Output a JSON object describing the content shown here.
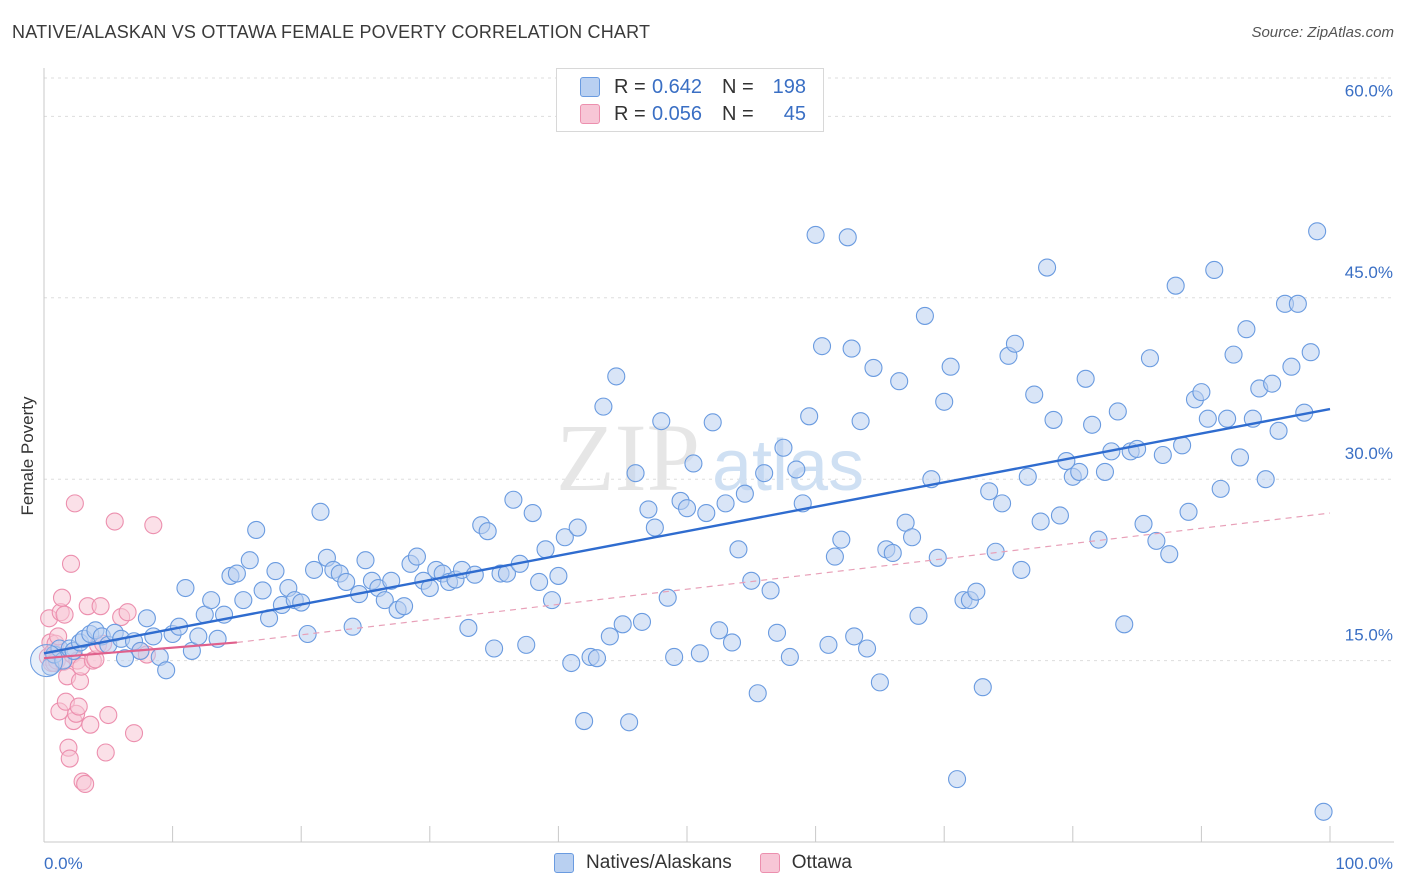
{
  "chart_data": {
    "type": "scatter",
    "title": "NATIVE/ALASKAN VS OTTAWA FEMALE POVERTY CORRELATION CHART",
    "source": "Source: ZipAtlas.com",
    "ylabel": "Female Poverty",
    "xlim": [
      0,
      100
    ],
    "ylim": [
      0,
      64
    ],
    "y_ticks": [
      {
        "value": 15,
        "label": "15.0%"
      },
      {
        "value": 30,
        "label": "30.0%"
      },
      {
        "value": 45,
        "label": "45.0%"
      },
      {
        "value": 60,
        "label": "60.0%"
      }
    ],
    "x_tick_labels": {
      "min": "0.0%",
      "max": "100.0%"
    },
    "watermark": {
      "zip": "ZIP",
      "atlas": "atlas"
    },
    "legend_stats": [
      {
        "r_label": "R =",
        "r": "0.642",
        "n_label": "N =",
        "n": "198"
      },
      {
        "r_label": "R =",
        "r": "0.056",
        "n_label": "N =",
        "n": "45"
      }
    ],
    "series": [
      {
        "name": "Natives/Alaskans",
        "color": "#6a9be0",
        "fill": "#b9d0f1",
        "trend": {
          "x0": 0,
          "y0": 15.6,
          "x1": 100,
          "y1": 35.8,
          "color": "#2f6ccf"
        },
        "points": [
          [
            0.5,
            14.5
          ],
          [
            0.8,
            15.5
          ],
          [
            1.2,
            16
          ],
          [
            1.5,
            15
          ],
          [
            2,
            16
          ],
          [
            2.3,
            15.8
          ],
          [
            2.8,
            16.5
          ],
          [
            3.1,
            16.8
          ],
          [
            3.6,
            17.2
          ],
          [
            4,
            17.5
          ],
          [
            4.5,
            17
          ],
          [
            5,
            16.3
          ],
          [
            5.5,
            17.3
          ],
          [
            6,
            16.8
          ],
          [
            6.3,
            15.2
          ],
          [
            7,
            16.6
          ],
          [
            7.5,
            15.8
          ],
          [
            8,
            18.5
          ],
          [
            8.5,
            17
          ],
          [
            9,
            15.3
          ],
          [
            9.5,
            14.2
          ],
          [
            10,
            17.2
          ],
          [
            10.5,
            17.8
          ],
          [
            11,
            21
          ],
          [
            11.5,
            15.8
          ],
          [
            12,
            17
          ],
          [
            12.5,
            18.8
          ],
          [
            13,
            20
          ],
          [
            13.5,
            16.8
          ],
          [
            14,
            18.8
          ],
          [
            14.5,
            22
          ],
          [
            15,
            22.2
          ],
          [
            15.5,
            20
          ],
          [
            16,
            23.3
          ],
          [
            16.5,
            25.8
          ],
          [
            17,
            20.8
          ],
          [
            17.5,
            18.5
          ],
          [
            18,
            22.4
          ],
          [
            18.5,
            19.6
          ],
          [
            19,
            21
          ],
          [
            19.5,
            20
          ],
          [
            20,
            19.8
          ],
          [
            20.5,
            17.2
          ],
          [
            21,
            22.5
          ],
          [
            21.5,
            27.3
          ],
          [
            22,
            23.5
          ],
          [
            22.5,
            22.5
          ],
          [
            23,
            22.2
          ],
          [
            23.5,
            21.5
          ],
          [
            24,
            17.8
          ],
          [
            24.5,
            20.5
          ],
          [
            25,
            23.3
          ],
          [
            25.5,
            21.6
          ],
          [
            26,
            21
          ],
          [
            26.5,
            20
          ],
          [
            27,
            21.6
          ],
          [
            27.5,
            19.2
          ],
          [
            28,
            19.5
          ],
          [
            28.5,
            23
          ],
          [
            29,
            23.6
          ],
          [
            29.5,
            21.6
          ],
          [
            30,
            21
          ],
          [
            30.5,
            22.5
          ],
          [
            31,
            22.2
          ],
          [
            31.5,
            21.5
          ],
          [
            32,
            21.7
          ],
          [
            32.5,
            22.5
          ],
          [
            33,
            17.7
          ],
          [
            33.5,
            22.1
          ],
          [
            34,
            26.2
          ],
          [
            34.5,
            25.7
          ],
          [
            35,
            16
          ],
          [
            35.5,
            22.2
          ],
          [
            36,
            22.2
          ],
          [
            36.5,
            28.3
          ],
          [
            37,
            23
          ],
          [
            37.5,
            16.3
          ],
          [
            38,
            27.2
          ],
          [
            38.5,
            21.5
          ],
          [
            39,
            24.2
          ],
          [
            39.5,
            20
          ],
          [
            40,
            22
          ],
          [
            40.5,
            25.2
          ],
          [
            41,
            14.8
          ],
          [
            41.5,
            26
          ],
          [
            42,
            10
          ],
          [
            42.5,
            15.3
          ],
          [
            43,
            15.2
          ],
          [
            43.5,
            36
          ],
          [
            44,
            17
          ],
          [
            44.5,
            38.5
          ],
          [
            45,
            18
          ],
          [
            45.5,
            9.9
          ],
          [
            46,
            30.5
          ],
          [
            46.5,
            18.2
          ],
          [
            47,
            27.5
          ],
          [
            47.5,
            26
          ],
          [
            48,
            34.8
          ],
          [
            48.5,
            20.2
          ],
          [
            49,
            15.3
          ],
          [
            49.5,
            28.2
          ],
          [
            50,
            27.6
          ],
          [
            50.5,
            31.3
          ],
          [
            51,
            15.6
          ],
          [
            51.5,
            27.2
          ],
          [
            52,
            34.7
          ],
          [
            52.5,
            17.5
          ],
          [
            53,
            28
          ],
          [
            53.5,
            16.5
          ],
          [
            54,
            24.2
          ],
          [
            54.5,
            28.8
          ],
          [
            55,
            21.6
          ],
          [
            55.5,
            12.3
          ],
          [
            56,
            30.5
          ],
          [
            56.5,
            20.8
          ],
          [
            57,
            17.3
          ],
          [
            57.5,
            32.6
          ],
          [
            58,
            15.3
          ],
          [
            58.5,
            30.8
          ],
          [
            59,
            28
          ],
          [
            59.5,
            35.2
          ],
          [
            60,
            50.2
          ],
          [
            60.5,
            41
          ],
          [
            61,
            16.3
          ],
          [
            61.5,
            23.6
          ],
          [
            62,
            25
          ],
          [
            62.5,
            50
          ],
          [
            62.8,
            40.8
          ],
          [
            63,
            17
          ],
          [
            63.5,
            34.8
          ],
          [
            64,
            16
          ],
          [
            64.5,
            39.2
          ],
          [
            65,
            13.2
          ],
          [
            65.5,
            24.2
          ],
          [
            66,
            23.9
          ],
          [
            66.5,
            38.1
          ],
          [
            67,
            26.4
          ],
          [
            67.5,
            25.2
          ],
          [
            68,
            18.7
          ],
          [
            68.5,
            43.5
          ],
          [
            69,
            30
          ],
          [
            69.5,
            23.5
          ],
          [
            70,
            36.4
          ],
          [
            70.5,
            39.3
          ],
          [
            71,
            5.2
          ],
          [
            71.5,
            20
          ],
          [
            72,
            20
          ],
          [
            72.5,
            20.7
          ],
          [
            73,
            12.8
          ],
          [
            73.5,
            29
          ],
          [
            74,
            24
          ],
          [
            74.5,
            28
          ],
          [
            75,
            40.2
          ],
          [
            75.5,
            41.2
          ],
          [
            76,
            22.5
          ],
          [
            76.5,
            30.2
          ],
          [
            77,
            37
          ],
          [
            77.5,
            26.5
          ],
          [
            78,
            47.5
          ],
          [
            78.5,
            34.9
          ],
          [
            79,
            27
          ],
          [
            79.5,
            31.5
          ],
          [
            80,
            30.2
          ],
          [
            80.5,
            30.6
          ],
          [
            81,
            38.3
          ],
          [
            81.5,
            34.5
          ],
          [
            82,
            25
          ],
          [
            82.5,
            30.6
          ],
          [
            83,
            32.3
          ],
          [
            83.5,
            35.6
          ],
          [
            84,
            18
          ],
          [
            84.5,
            32.3
          ],
          [
            85,
            32.5
          ],
          [
            85.5,
            26.3
          ],
          [
            86,
            40
          ],
          [
            86.5,
            24.9
          ],
          [
            87,
            32
          ],
          [
            87.5,
            23.8
          ],
          [
            88,
            46
          ],
          [
            88.5,
            32.8
          ],
          [
            89,
            27.3
          ],
          [
            89.5,
            36.6
          ],
          [
            90,
            37.2
          ],
          [
            90.5,
            35
          ],
          [
            91,
            47.3
          ],
          [
            91.5,
            29.2
          ],
          [
            92,
            35
          ],
          [
            92.5,
            40.3
          ],
          [
            93,
            31.8
          ],
          [
            93.5,
            42.4
          ],
          [
            94,
            35
          ],
          [
            94.5,
            37.5
          ],
          [
            95,
            30
          ],
          [
            95.5,
            37.9
          ],
          [
            96,
            34
          ],
          [
            96.5,
            44.5
          ],
          [
            97,
            39.3
          ],
          [
            97.5,
            44.5
          ],
          [
            98,
            35.5
          ],
          [
            98.5,
            40.5
          ],
          [
            99,
            50.5
          ],
          [
            99.5,
            2.5
          ]
        ]
      },
      {
        "name": "Ottawa",
        "color": "#ec8fae",
        "fill": "#f7c6d6",
        "trend": {
          "x0": 0,
          "y0": 15.2,
          "x1": 15,
          "y1": 16.5,
          "color": "#e0608c"
        },
        "trend_ext": {
          "x0": 15,
          "y0": 16.5,
          "x1": 100,
          "y1": 27.2
        },
        "points": [
          [
            0.3,
            15.3
          ],
          [
            0.4,
            18.5
          ],
          [
            0.5,
            16.5
          ],
          [
            0.6,
            14.8
          ],
          [
            0.7,
            15.7
          ],
          [
            0.8,
            14.8
          ],
          [
            0.9,
            16.4
          ],
          [
            1,
            15
          ],
          [
            1.1,
            17
          ],
          [
            1.2,
            10.8
          ],
          [
            1.3,
            19
          ],
          [
            1.4,
            20.2
          ],
          [
            1.5,
            14.9
          ],
          [
            1.6,
            18.8
          ],
          [
            1.7,
            11.6
          ],
          [
            1.8,
            13.7
          ],
          [
            1.9,
            7.8
          ],
          [
            2,
            6.9
          ],
          [
            2.1,
            23
          ],
          [
            2.2,
            15.5
          ],
          [
            2.3,
            10
          ],
          [
            2.4,
            28
          ],
          [
            2.5,
            10.6
          ],
          [
            2.6,
            15
          ],
          [
            2.7,
            11.2
          ],
          [
            2.8,
            13.3
          ],
          [
            2.9,
            14.5
          ],
          [
            3,
            5
          ],
          [
            3.2,
            4.8
          ],
          [
            3.4,
            19.5
          ],
          [
            3.6,
            9.7
          ],
          [
            3.8,
            15
          ],
          [
            4,
            15.1
          ],
          [
            4.2,
            16.3
          ],
          [
            4.4,
            19.5
          ],
          [
            4.6,
            16.4
          ],
          [
            4.8,
            7.4
          ],
          [
            5,
            10.5
          ],
          [
            5.5,
            26.5
          ],
          [
            6,
            18.6
          ],
          [
            6.5,
            19
          ],
          [
            7,
            9
          ],
          [
            7.5,
            15.8
          ],
          [
            8,
            15.5
          ],
          [
            8.5,
            26.2
          ]
        ]
      }
    ]
  }
}
